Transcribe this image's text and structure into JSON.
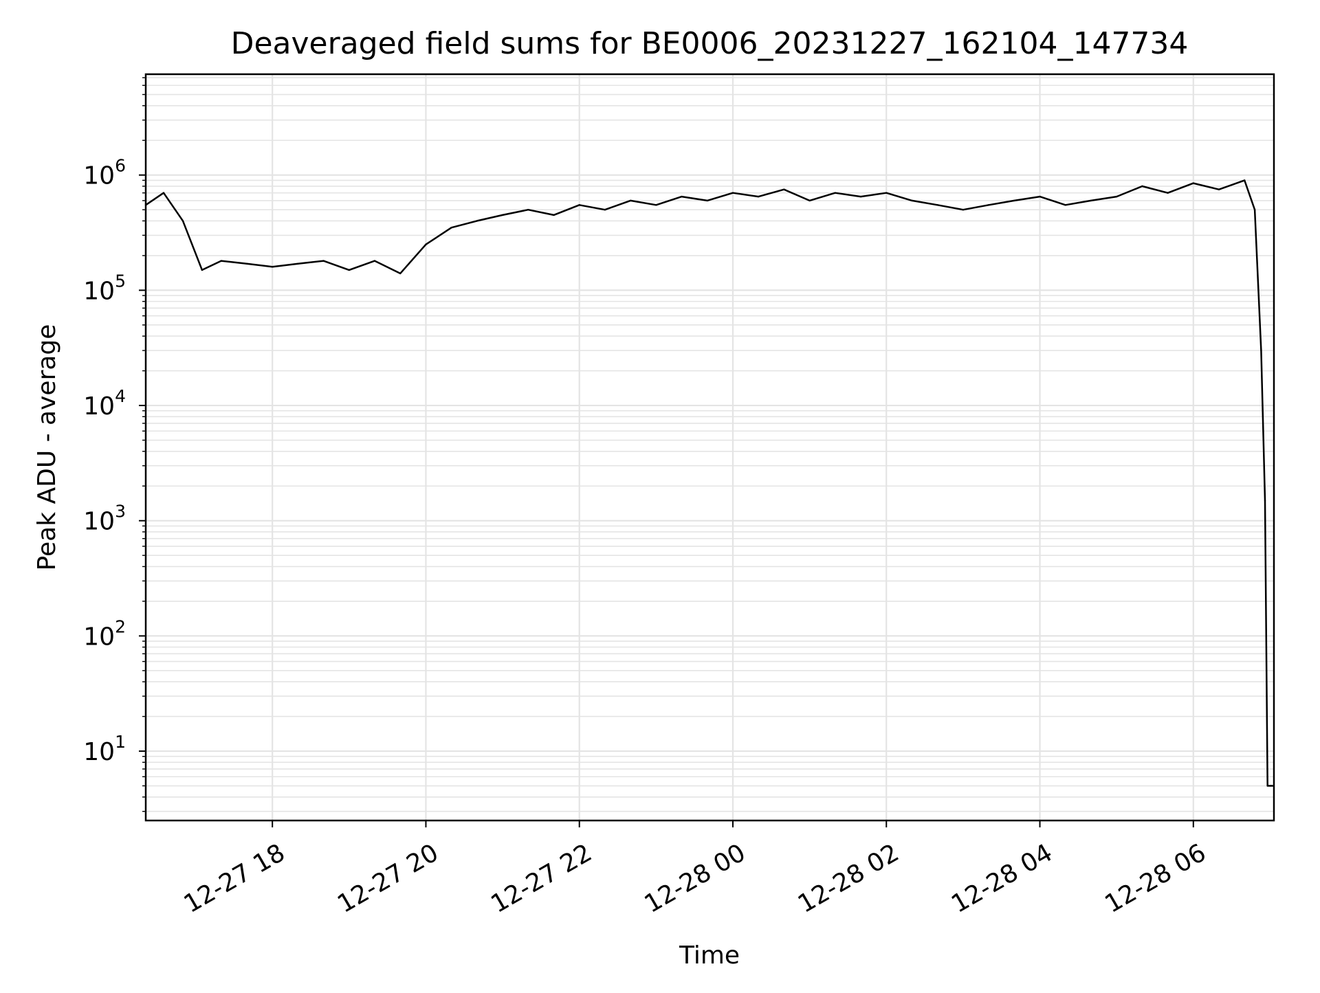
{
  "chart_data": {
    "type": "line",
    "title": "Deaveraged field sums for BE0006_20231227_162104_147734",
    "xlabel": "Time",
    "ylabel": "Peak ADU - average",
    "y_scale": "log",
    "grid": true,
    "xlim": [
      "2023-12-27 16:21",
      "2023-12-28 07:03"
    ],
    "ylim": [
      2.5,
      7500000
    ],
    "x_ticks": [
      {
        "label": "12-27 18",
        "time": "2023-12-27 18:00"
      },
      {
        "label": "12-27 20",
        "time": "2023-12-27 20:00"
      },
      {
        "label": "12-27 22",
        "time": "2023-12-27 22:00"
      },
      {
        "label": "12-28 00",
        "time": "2023-12-28 00:00"
      },
      {
        "label": "12-28 02",
        "time": "2023-12-28 02:00"
      },
      {
        "label": "12-28 04",
        "time": "2023-12-28 04:00"
      },
      {
        "label": "12-28 06",
        "time": "2023-12-28 06:00"
      }
    ],
    "y_ticks": [
      {
        "base": "10",
        "exp": "1",
        "value": 10
      },
      {
        "base": "10",
        "exp": "2",
        "value": 100
      },
      {
        "base": "10",
        "exp": "3",
        "value": 1000
      },
      {
        "base": "10",
        "exp": "4",
        "value": 10000
      },
      {
        "base": "10",
        "exp": "5",
        "value": 100000
      },
      {
        "base": "10",
        "exp": "6",
        "value": 1000000
      }
    ],
    "series": [
      {
        "color": "#000000",
        "x": [
          "2023-12-27 16:21",
          "2023-12-27 16:35",
          "2023-12-27 16:50",
          "2023-12-27 17:05",
          "2023-12-27 17:20",
          "2023-12-27 17:40",
          "2023-12-27 18:00",
          "2023-12-27 18:20",
          "2023-12-27 18:40",
          "2023-12-27 19:00",
          "2023-12-27 19:20",
          "2023-12-27 19:40",
          "2023-12-27 20:00",
          "2023-12-27 20:20",
          "2023-12-27 20:40",
          "2023-12-27 21:00",
          "2023-12-27 21:20",
          "2023-12-27 21:40",
          "2023-12-27 22:00",
          "2023-12-27 22:20",
          "2023-12-27 22:40",
          "2023-12-27 23:00",
          "2023-12-27 23:20",
          "2023-12-27 23:40",
          "2023-12-28 00:00",
          "2023-12-28 00:20",
          "2023-12-28 00:40",
          "2023-12-28 01:00",
          "2023-12-28 01:20",
          "2023-12-28 01:40",
          "2023-12-28 02:00",
          "2023-12-28 02:20",
          "2023-12-28 02:40",
          "2023-12-28 03:00",
          "2023-12-28 03:20",
          "2023-12-28 03:40",
          "2023-12-28 04:00",
          "2023-12-28 04:20",
          "2023-12-28 04:40",
          "2023-12-28 05:00",
          "2023-12-28 05:20",
          "2023-12-28 05:40",
          "2023-12-28 06:00",
          "2023-12-28 06:20",
          "2023-12-28 06:40",
          "2023-12-28 06:48",
          "2023-12-28 06:53",
          "2023-12-28 06:56",
          "2023-12-28 06:58",
          "2023-12-28 07:00",
          "2023-12-28 07:02"
        ],
        "y": [
          550000,
          700000,
          400000,
          150000,
          180000,
          170000,
          160000,
          170000,
          180000,
          150000,
          180000,
          140000,
          250000,
          350000,
          400000,
          450000,
          500000,
          450000,
          550000,
          500000,
          600000,
          550000,
          650000,
          600000,
          700000,
          650000,
          750000,
          600000,
          700000,
          650000,
          700000,
          600000,
          550000,
          500000,
          550000,
          600000,
          650000,
          550000,
          600000,
          650000,
          800000,
          700000,
          850000,
          750000,
          900000,
          500000,
          30000,
          1500,
          5,
          5,
          5
        ]
      }
    ]
  }
}
